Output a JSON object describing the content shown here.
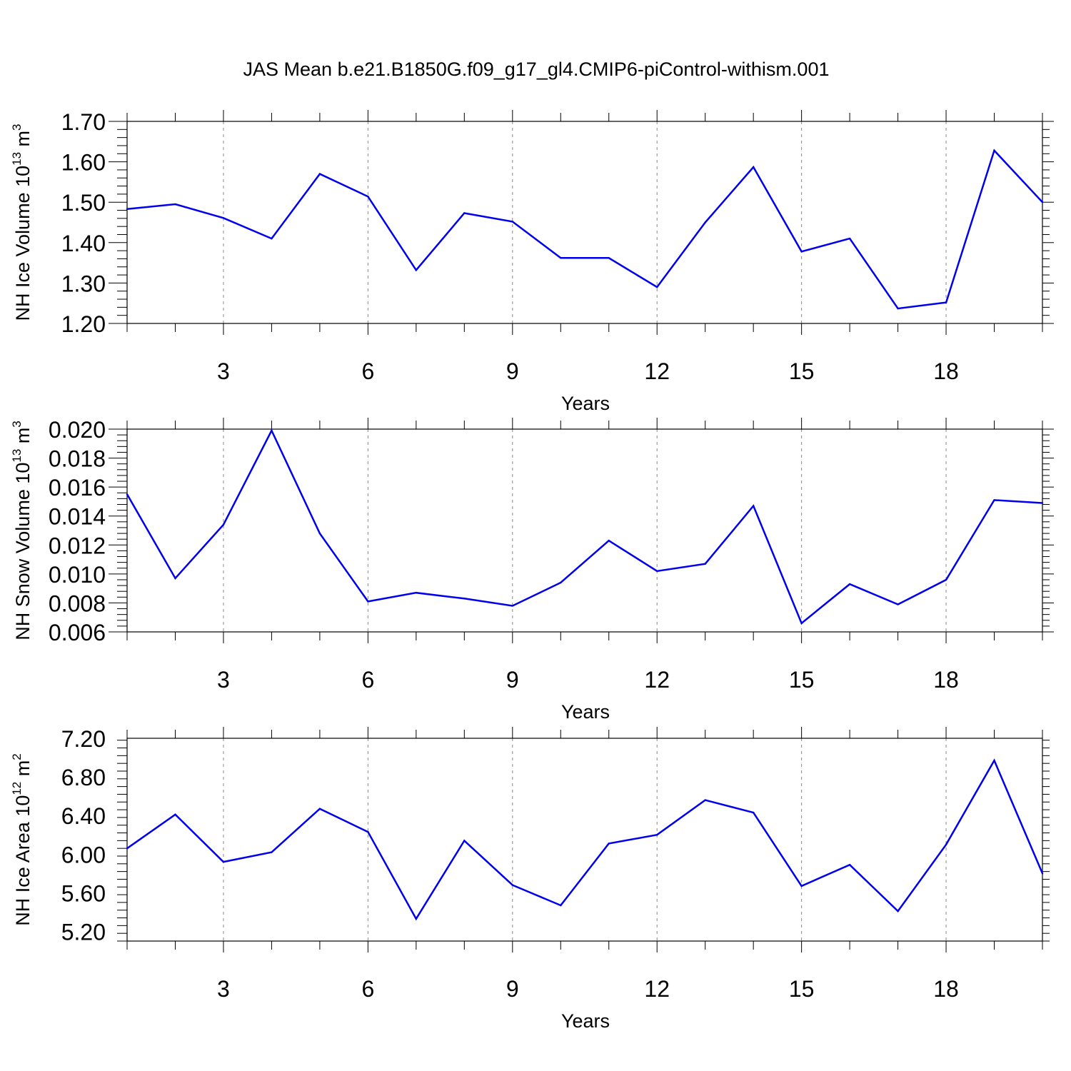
{
  "title": "JAS Mean b.e21.B1850G.f09_g17_gl4.CMIP6-piControl-withism.001",
  "colors": {
    "line": "#0000ee",
    "grid": "#888888",
    "axis": "#000000"
  },
  "chart_data": [
    {
      "type": "line",
      "ylabel": {
        "main": "NH Ice Volume 10",
        "exp": "13",
        "unit": " m",
        "unit_exp": "3"
      },
      "xlabel": "Years",
      "xlim": [
        1,
        20
      ],
      "ylim": [
        1.2,
        1.7
      ],
      "yticks": [
        "1.20",
        "1.30",
        "1.40",
        "1.50",
        "1.60",
        "1.70"
      ],
      "xticks": [
        "3",
        "6",
        "9",
        "12",
        "15",
        "18"
      ],
      "grid": "x-dashed",
      "x": [
        1,
        2,
        3,
        4,
        5,
        6,
        7,
        8,
        9,
        10,
        11,
        12,
        13,
        14,
        15,
        16,
        17,
        18,
        19,
        20
      ],
      "values": [
        1.483,
        1.495,
        1.461,
        1.41,
        1.57,
        1.514,
        1.332,
        1.473,
        1.452,
        1.362,
        1.362,
        1.29,
        1.45,
        1.587,
        1.378,
        1.41,
        1.237,
        1.252,
        1.628,
        1.5
      ]
    },
    {
      "type": "line",
      "ylabel": {
        "main": "NH Snow Volume 10",
        "exp": "13",
        "unit": " m",
        "unit_exp": "3"
      },
      "xlabel": "Years",
      "xlim": [
        1,
        20
      ],
      "ylim": [
        0.006,
        0.02
      ],
      "yticks": [
        "0.006",
        "0.008",
        "0.010",
        "0.012",
        "0.014",
        "0.016",
        "0.018",
        "0.020"
      ],
      "xticks": [
        "3",
        "6",
        "9",
        "12",
        "15",
        "18"
      ],
      "grid": "x-dashed",
      "x": [
        1,
        2,
        3,
        4,
        5,
        6,
        7,
        8,
        9,
        10,
        11,
        12,
        13,
        14,
        15,
        16,
        17,
        18,
        19,
        20
      ],
      "values": [
        0.0155,
        0.0097,
        0.0134,
        0.0199,
        0.0128,
        0.0081,
        0.0087,
        0.0083,
        0.0078,
        0.0094,
        0.0123,
        0.0102,
        0.0107,
        0.0147,
        0.0066,
        0.0093,
        0.0079,
        0.0096,
        0.0151,
        0.0149
      ]
    },
    {
      "type": "line",
      "ylabel": {
        "main": "NH Ice Area 10",
        "exp": "12",
        "unit": " m",
        "unit_exp": "2"
      },
      "xlabel": "Years",
      "xlim": [
        1,
        20
      ],
      "ylim": [
        5.1,
        7.2
      ],
      "yticks": [
        "5.20",
        "5.60",
        "6.00",
        "6.40",
        "6.80",
        "7.20"
      ],
      "xticks": [
        "3",
        "6",
        "9",
        "12",
        "15",
        "18"
      ],
      "grid": "x-dashed",
      "x": [
        1,
        2,
        3,
        4,
        5,
        6,
        7,
        8,
        9,
        10,
        11,
        12,
        13,
        14,
        15,
        16,
        17,
        18,
        19,
        20
      ],
      "values": [
        6.06,
        6.41,
        5.92,
        6.02,
        6.47,
        6.23,
        5.33,
        6.14,
        5.68,
        5.47,
        6.11,
        6.2,
        6.56,
        6.43,
        5.67,
        5.89,
        5.41,
        6.1,
        6.97,
        5.8
      ]
    }
  ]
}
